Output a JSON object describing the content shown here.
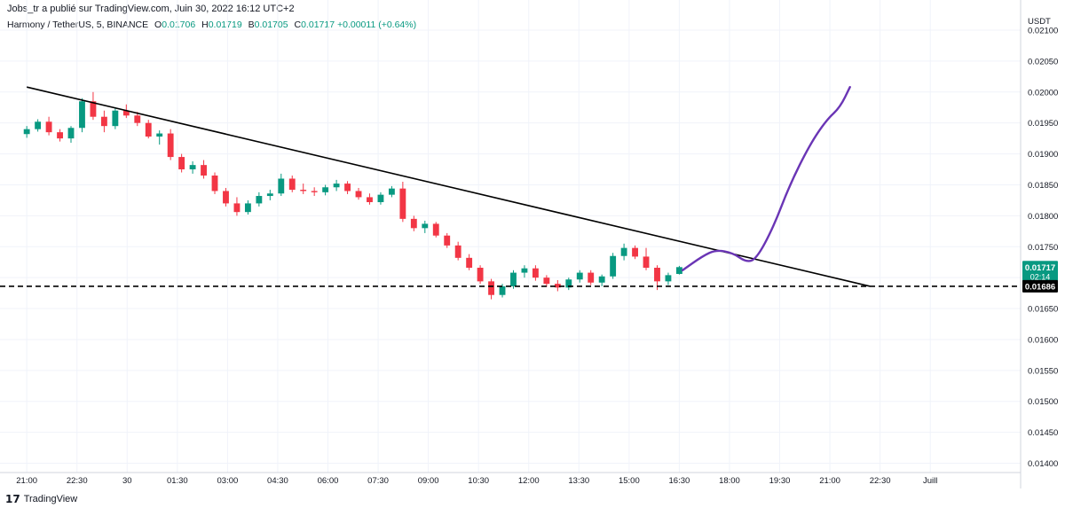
{
  "header": {
    "publisher_line": "Jobs_tr a publié sur TradingView.com, Juin 30, 2022 16:12 UTC+2",
    "symbol_line": "Harmony / TetherUS, 5, BINANCE",
    "ohlc": {
      "open_label": "O",
      "open": "0.01706",
      "high_label": "H",
      "high": "0.01719",
      "low_label": "B",
      "low": "0.01705",
      "close_label": "C",
      "close": "0.01717",
      "change": "+0.00011 (+0.64%)"
    }
  },
  "footer": {
    "brand_logo": "17",
    "brand_name": "TradingView"
  },
  "colors": {
    "up": "#089981",
    "down": "#f23645",
    "projection": "#6a35b5",
    "grid": "#f0f3fa",
    "text": "#131722"
  },
  "chart_data": {
    "type": "candlestick",
    "y_unit": "USDT",
    "ylim": [
      0.01385,
      0.02105
    ],
    "y_ticks": [
      "0.02100",
      "0.02050",
      "0.02000",
      "0.01950",
      "0.01900",
      "0.01850",
      "0.01800",
      "0.01750",
      "0.01700",
      "0.01650",
      "0.01600",
      "0.01550",
      "0.01500",
      "0.01450",
      "0.01400"
    ],
    "x_ticks": [
      "21:00",
      "22:30",
      "30",
      "01:30",
      "03:00",
      "04:30",
      "06:00",
      "07:30",
      "09:00",
      "10:30",
      "12:00",
      "13:30",
      "15:00",
      "16:30",
      "18:00",
      "19:30",
      "21:00",
      "22:30",
      "Juill"
    ],
    "last_price": {
      "value": 0.01717,
      "label": "0.01717",
      "countdown": "02:14"
    },
    "support": {
      "value": 0.01686,
      "label": "0.01686"
    },
    "trendline": {
      "start": {
        "index": 0,
        "y": 0.02008
      },
      "end": {
        "index": 25.2,
        "y": 0.01686
      }
    },
    "projection": [
      {
        "index": 19.6,
        "y": 0.01712
      },
      {
        "index": 20.2,
        "y": 0.01735
      },
      {
        "index": 20.6,
        "y": 0.01745
      },
      {
        "index": 21.1,
        "y": 0.0174
      },
      {
        "index": 21.5,
        "y": 0.01725
      },
      {
        "index": 21.8,
        "y": 0.0173
      },
      {
        "index": 22.3,
        "y": 0.0178
      },
      {
        "index": 22.8,
        "y": 0.0185
      },
      {
        "index": 23.4,
        "y": 0.01915
      },
      {
        "index": 23.9,
        "y": 0.01955
      },
      {
        "index": 24.3,
        "y": 0.01975
      },
      {
        "index": 24.6,
        "y": 0.02008
      }
    ],
    "x_range": [
      -0.8,
      29.7
    ],
    "candle_width": 0.2,
    "candles": [
      {
        "o": 0.01932,
        "h": 0.01945,
        "l": 0.01926,
        "c": 0.0194
      },
      {
        "o": 0.0194,
        "h": 0.01956,
        "l": 0.01936,
        "c": 0.01952
      },
      {
        "o": 0.01952,
        "h": 0.0196,
        "l": 0.0193,
        "c": 0.01935
      },
      {
        "o": 0.01935,
        "h": 0.0194,
        "l": 0.0192,
        "c": 0.01925
      },
      {
        "o": 0.01925,
        "h": 0.01945,
        "l": 0.01918,
        "c": 0.01942
      },
      {
        "o": 0.01942,
        "h": 0.0199,
        "l": 0.01935,
        "c": 0.01985
      },
      {
        "o": 0.01985,
        "h": 0.02,
        "l": 0.01955,
        "c": 0.0196
      },
      {
        "o": 0.0196,
        "h": 0.0197,
        "l": 0.01935,
        "c": 0.01945
      },
      {
        "o": 0.01945,
        "h": 0.01975,
        "l": 0.0194,
        "c": 0.0197
      },
      {
        "o": 0.0197,
        "h": 0.0198,
        "l": 0.01958,
        "c": 0.01962
      },
      {
        "o": 0.01962,
        "h": 0.01968,
        "l": 0.01945,
        "c": 0.0195
      },
      {
        "o": 0.0195,
        "h": 0.01955,
        "l": 0.01925,
        "c": 0.01928
      },
      {
        "o": 0.01928,
        "h": 0.01938,
        "l": 0.01915,
        "c": 0.01933
      },
      {
        "o": 0.01933,
        "h": 0.0194,
        "l": 0.0189,
        "c": 0.01895
      },
      {
        "o": 0.01895,
        "h": 0.019,
        "l": 0.0187,
        "c": 0.01875
      },
      {
        "o": 0.01875,
        "h": 0.01888,
        "l": 0.01868,
        "c": 0.01882
      },
      {
        "o": 0.01882,
        "h": 0.0189,
        "l": 0.0186,
        "c": 0.01865
      },
      {
        "o": 0.01865,
        "h": 0.0187,
        "l": 0.01835,
        "c": 0.0184
      },
      {
        "o": 0.0184,
        "h": 0.01845,
        "l": 0.01815,
        "c": 0.0182
      },
      {
        "o": 0.0182,
        "h": 0.0183,
        "l": 0.018,
        "c": 0.01806
      },
      {
        "o": 0.01806,
        "h": 0.01825,
        "l": 0.01802,
        "c": 0.0182
      },
      {
        "o": 0.0182,
        "h": 0.01838,
        "l": 0.01815,
        "c": 0.01832
      },
      {
        "o": 0.01832,
        "h": 0.01842,
        "l": 0.01825,
        "c": 0.01836
      },
      {
        "o": 0.01836,
        "h": 0.01868,
        "l": 0.01832,
        "c": 0.0186
      },
      {
        "o": 0.0186,
        "h": 0.01865,
        "l": 0.01838,
        "c": 0.01842
      },
      {
        "o": 0.01842,
        "h": 0.01852,
        "l": 0.01835,
        "c": 0.0184
      },
      {
        "o": 0.0184,
        "h": 0.01846,
        "l": 0.01832,
        "c": 0.01838
      },
      {
        "o": 0.01838,
        "h": 0.0185,
        "l": 0.01833,
        "c": 0.01846
      },
      {
        "o": 0.01846,
        "h": 0.01858,
        "l": 0.0184,
        "c": 0.01852
      },
      {
        "o": 0.01852,
        "h": 0.01856,
        "l": 0.01835,
        "c": 0.0184
      },
      {
        "o": 0.0184,
        "h": 0.01845,
        "l": 0.01826,
        "c": 0.0183
      },
      {
        "o": 0.0183,
        "h": 0.01836,
        "l": 0.01818,
        "c": 0.01822
      },
      {
        "o": 0.01822,
        "h": 0.01838,
        "l": 0.01818,
        "c": 0.01834
      },
      {
        "o": 0.01834,
        "h": 0.01848,
        "l": 0.0183,
        "c": 0.01844
      },
      {
        "o": 0.01844,
        "h": 0.01855,
        "l": 0.0179,
        "c": 0.01795
      },
      {
        "o": 0.01795,
        "h": 0.018,
        "l": 0.01775,
        "c": 0.0178
      },
      {
        "o": 0.0178,
        "h": 0.01792,
        "l": 0.01772,
        "c": 0.01787
      },
      {
        "o": 0.01787,
        "h": 0.0179,
        "l": 0.01765,
        "c": 0.01768
      },
      {
        "o": 0.01768,
        "h": 0.01772,
        "l": 0.01748,
        "c": 0.01752
      },
      {
        "o": 0.01752,
        "h": 0.01758,
        "l": 0.01728,
        "c": 0.01732
      },
      {
        "o": 0.01732,
        "h": 0.01738,
        "l": 0.01712,
        "c": 0.01716
      },
      {
        "o": 0.01716,
        "h": 0.0172,
        "l": 0.0169,
        "c": 0.01694
      },
      {
        "o": 0.01694,
        "h": 0.01698,
        "l": 0.01665,
        "c": 0.01672
      },
      {
        "o": 0.01672,
        "h": 0.0169,
        "l": 0.01668,
        "c": 0.01686
      },
      {
        "o": 0.01686,
        "h": 0.01712,
        "l": 0.01682,
        "c": 0.01708
      },
      {
        "o": 0.01708,
        "h": 0.0172,
        "l": 0.017,
        "c": 0.01715
      },
      {
        "o": 0.01715,
        "h": 0.0172,
        "l": 0.01695,
        "c": 0.017
      },
      {
        "o": 0.017,
        "h": 0.01704,
        "l": 0.01685,
        "c": 0.0169
      },
      {
        "o": 0.0169,
        "h": 0.01696,
        "l": 0.01678,
        "c": 0.01684
      },
      {
        "o": 0.01684,
        "h": 0.017,
        "l": 0.0168,
        "c": 0.01697
      },
      {
        "o": 0.01697,
        "h": 0.01712,
        "l": 0.01692,
        "c": 0.01708
      },
      {
        "o": 0.01708,
        "h": 0.01712,
        "l": 0.01688,
        "c": 0.01692
      },
      {
        "o": 0.01692,
        "h": 0.01705,
        "l": 0.01686,
        "c": 0.01702
      },
      {
        "o": 0.01702,
        "h": 0.0174,
        "l": 0.01698,
        "c": 0.01735
      },
      {
        "o": 0.01735,
        "h": 0.01755,
        "l": 0.01728,
        "c": 0.01748
      },
      {
        "o": 0.01748,
        "h": 0.01752,
        "l": 0.0173,
        "c": 0.01734
      },
      {
        "o": 0.01734,
        "h": 0.01748,
        "l": 0.01712,
        "c": 0.01716
      },
      {
        "o": 0.01716,
        "h": 0.0172,
        "l": 0.0168,
        "c": 0.01694
      },
      {
        "o": 0.01694,
        "h": 0.01708,
        "l": 0.01688,
        "c": 0.01704
      },
      {
        "o": 0.01706,
        "h": 0.01719,
        "l": 0.01705,
        "c": 0.01717
      }
    ]
  }
}
